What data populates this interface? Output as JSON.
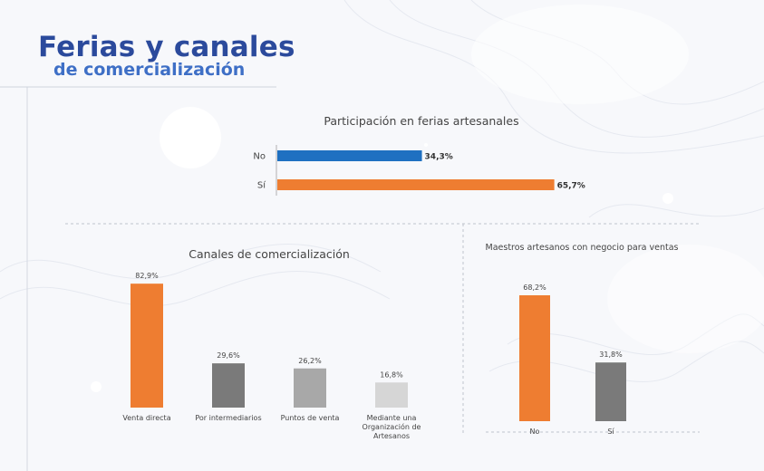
{
  "header": {
    "title": "Ferias y canales",
    "subtitle": "de comercialización"
  },
  "colors": {
    "orange": "#ee7d31",
    "blue": "#1f70c1",
    "dark_gray": "#7a7a7a",
    "mid_gray": "#a8a8a8",
    "light_gray": "#d6d6d6",
    "title_blue": "#2b4a9c"
  },
  "chart_data": [
    {
      "id": "ferias",
      "type": "bar",
      "orientation": "horizontal",
      "title": "Participación en ferias artesanales",
      "categories": [
        "No",
        "Sí"
      ],
      "values": [
        34.3,
        65.7
      ],
      "value_labels": [
        "34,3%",
        "65,7%"
      ],
      "colors": [
        "#1f70c1",
        "#ee7d31"
      ],
      "xlim": [
        0,
        66
      ],
      "grid": false,
      "legend": "none"
    },
    {
      "id": "canales",
      "type": "bar",
      "orientation": "vertical",
      "title": "Canales de comercialización",
      "categories": [
        [
          "Venta directa"
        ],
        [
          "Por intermediarios"
        ],
        [
          "Puntos de venta"
        ],
        [
          "Mediante una",
          "Organización de",
          "Artesanos"
        ]
      ],
      "values": [
        82.9,
        29.6,
        26.2,
        16.8
      ],
      "value_labels": [
        "82,9%",
        "29,6%",
        "26,2%",
        "16,8%"
      ],
      "colors": [
        "#ee7d31",
        "#7a7a7a",
        "#a8a8a8",
        "#d6d6d6"
      ],
      "ylim": [
        0,
        83
      ],
      "grid": false,
      "legend": "none"
    },
    {
      "id": "maestros",
      "type": "bar",
      "orientation": "vertical",
      "title": "Maestros artesanos con negocio para ventas",
      "categories": [
        [
          "No"
        ],
        [
          "Sí"
        ]
      ],
      "values": [
        68.2,
        31.8
      ],
      "value_labels": [
        "68,2%",
        "31,8%"
      ],
      "colors": [
        "#ee7d31",
        "#7a7a7a"
      ],
      "ylim": [
        0,
        68.2
      ],
      "grid": false,
      "legend": "none"
    }
  ]
}
